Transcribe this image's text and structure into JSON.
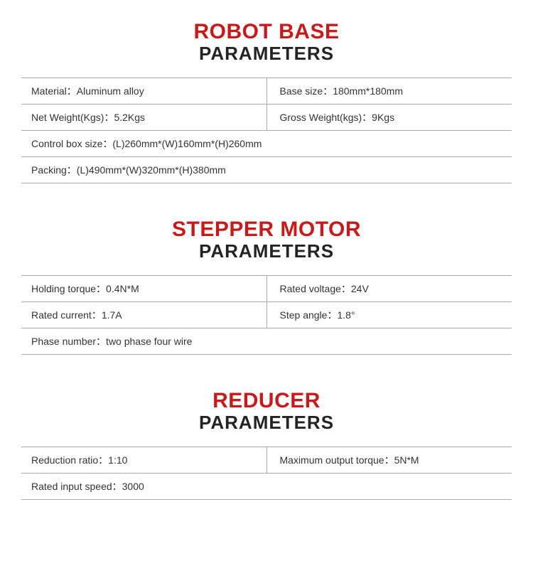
{
  "colors": {
    "title_main": "#c71b1b",
    "title_sub": "#242424",
    "text": "#333333",
    "border": "#aaaaaa",
    "background": "#ffffff"
  },
  "typography": {
    "title_main_size": 30,
    "title_main_weight": 800,
    "title_sub_size": 26,
    "title_sub_weight": 700,
    "cell_font_size": 14
  },
  "sections": {
    "robot_base": {
      "title_main": "ROBOT BASE",
      "title_sub": "PARAMETERS",
      "rows": {
        "r1_left": "Material：Aluminum alloy",
        "r1_right": "Base size：180mm*180mm",
        "r2_left": "Net Weight(Kgs)：5.2Kgs",
        "r2_right": "Gross Weight(kgs)：9Kgs",
        "r3": "Control box size：(L)260mm*(W)160mm*(H)260mm",
        "r4": "Packing：(L)490mm*(W)320mm*(H)380mm"
      }
    },
    "stepper": {
      "title_main": "STEPPER MOTOR",
      "title_sub": "PARAMETERS",
      "rows": {
        "r1_left": "Holding torque：0.4N*M",
        "r1_right": "Rated voltage：24V",
        "r2_left": "Rated current：1.7A",
        "r2_right": "Step angle：1.8°",
        "r3": "Phase number：two phase four wire"
      }
    },
    "reducer": {
      "title_main": "REDUCER",
      "title_sub": "PARAMETERS",
      "rows": {
        "r1_left": "Reduction ratio：1:10",
        "r1_right": "Maximum output torque：5N*M",
        "r2": "Rated input speed：3000"
      }
    }
  }
}
